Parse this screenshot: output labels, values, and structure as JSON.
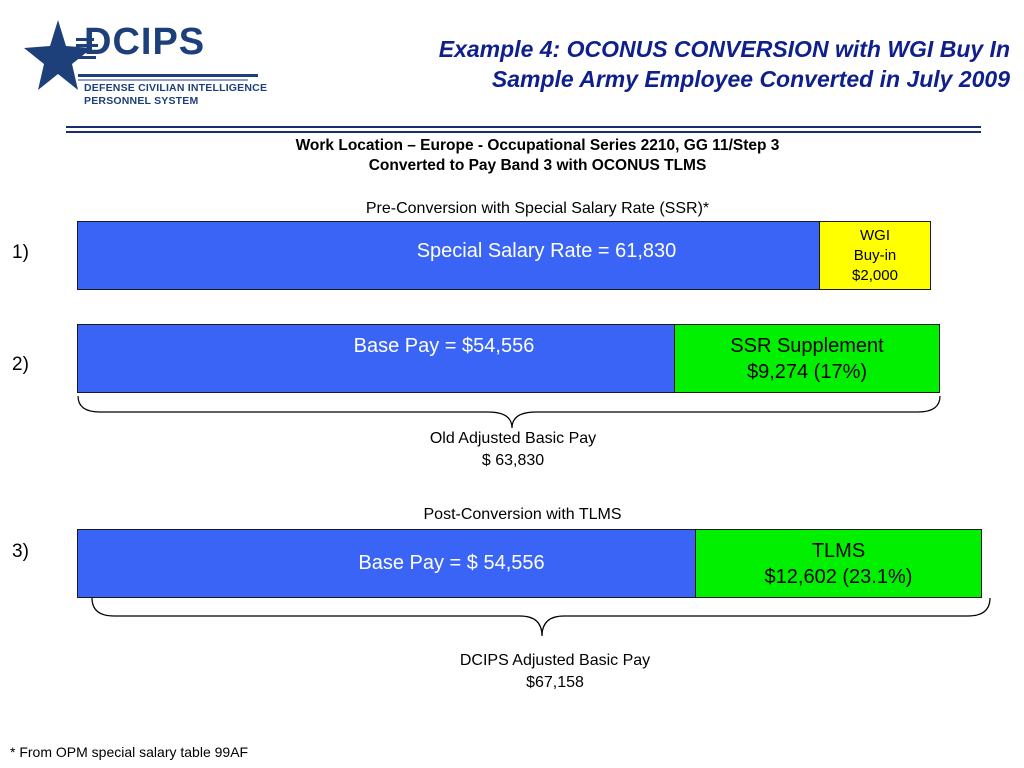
{
  "logo": {
    "wordmark": "DCIPS",
    "line1": "DEFENSE CIVILIAN INTELLIGENCE",
    "line2": "PERSONNEL SYSTEM"
  },
  "title": {
    "line1": "Example 4: OCONUS CONVERSION with WGI Buy In",
    "line2": "Sample Army Employee Converted in July 2009"
  },
  "subheading": {
    "line1": "Work Location – Europe - Occupational Series 2210, GG 11/Step 3",
    "line2": "Converted to Pay Band 3 with OCONUS TLMS"
  },
  "pre_conversion_label": "Pre-Conversion with Special Salary Rate (SSR)*",
  "row1": {
    "label": "1)",
    "ssr_text": "Special Salary Rate = 61,830",
    "wgi_line1": "WGI",
    "wgi_line2": "Buy-in",
    "wgi_line3": "$2,000"
  },
  "row2": {
    "label": "2)",
    "base_text": "Base Pay = $54,556",
    "supp_line1": "SSR Supplement",
    "supp_line2": "$9,274  (17%)"
  },
  "old_adjusted": {
    "line1": "Old Adjusted Basic Pay",
    "line2": "$ 63,830"
  },
  "post_conversion_label": "Post-Conversion with TLMS",
  "row3": {
    "label": "3)",
    "base_text": "Base Pay = $ 54,556",
    "tlms_line1": "TLMS",
    "tlms_line2": "$12,602 (23.1%)"
  },
  "dcips_adjusted": {
    "line1": "DCIPS Adjusted Basic Pay",
    "line2": "$67,158"
  },
  "footnote": "* From OPM special salary table 99AF",
  "colors": {
    "blue": "#3a64f5",
    "green": "#00f000",
    "yellow": "#ffff00",
    "title": "#0f1f8c",
    "logo": "#1d3f7a"
  }
}
